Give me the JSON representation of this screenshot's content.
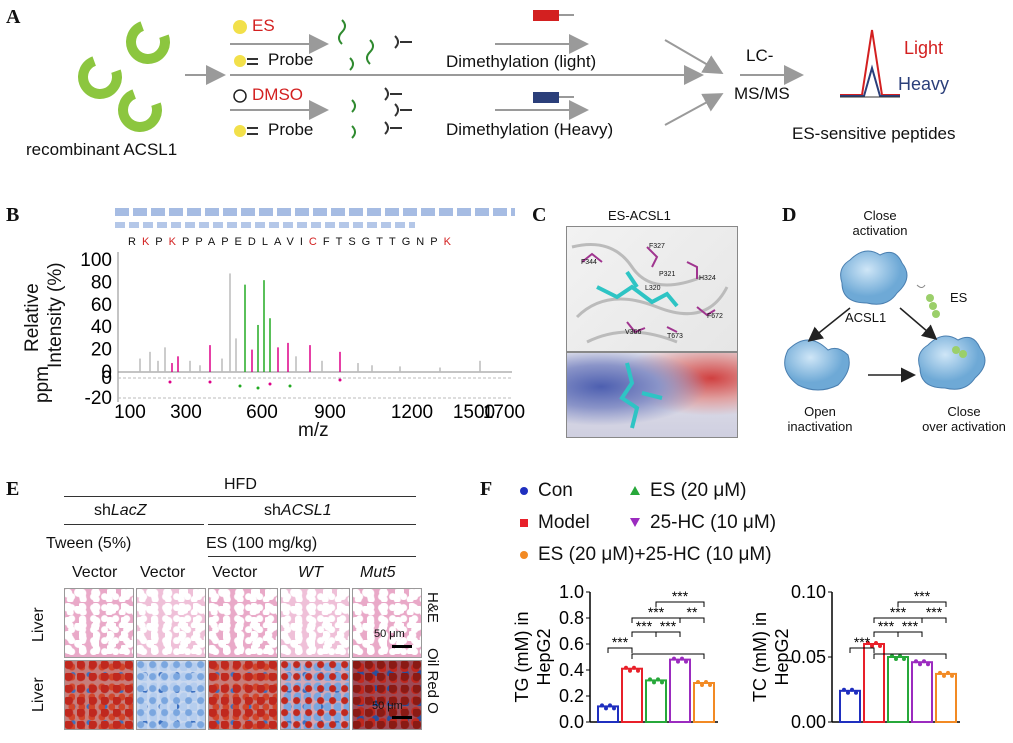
{
  "panel_labels": {
    "a": "A",
    "b": "B",
    "c": "C",
    "d": "D",
    "e": "E",
    "f": "F"
  },
  "panel_a": {
    "recombinant": "recombinant ACSL1",
    "es": "ES",
    "probe": "Probe",
    "dmso": "DMSO",
    "probe2": "Probe",
    "dim_light": "Dimethylation (light)",
    "dim_heavy": "Dimethylation (Heavy)",
    "lc_line1": "LC-",
    "lc_line2": "MS/MS",
    "light": "Light",
    "heavy": "Heavy",
    "es_sensitive": "ES-sensitive peptides",
    "colors": {
      "green": "#8cc63f",
      "red": "#d32020",
      "navy": "#2b3f7a",
      "yellow": "#f2e04a",
      "arrow": "#9a9a9a"
    }
  },
  "panel_b": {
    "peptide": [
      "R",
      "K",
      "P",
      "K",
      "P",
      "P",
      "A",
      "P",
      "E",
      "D",
      "L",
      "A",
      "V",
      "I",
      "C",
      "F",
      "T",
      "S",
      "G",
      "T",
      "T",
      "G",
      "N",
      "P",
      "K"
    ],
    "peptide_red_idx": [
      1,
      3,
      14,
      24
    ],
    "ylabel1": "Relative",
    "ylabel2": "Intensity (%)",
    "ppm": "ppm",
    "xlabel": "m/z",
    "yticks": [
      "100",
      "80",
      "60",
      "40",
      "20",
      "0"
    ],
    "ppm_ticks": [
      "0",
      "-20"
    ],
    "xticks": [
      "100",
      "300",
      "600",
      "900",
      "1200",
      "1500",
      "1700"
    ]
  },
  "panel_c": {
    "title": "ES-ACSL1",
    "residues": [
      "F344",
      "F327",
      "P321",
      "H324",
      "L320",
      "F672",
      "V366",
      "T673"
    ]
  },
  "panel_d": {
    "close_act1": "Close",
    "close_act2": "activation",
    "es": "ES",
    "acsl1": "ACSL1",
    "open1": "Open",
    "open2": "inactivation",
    "close_over1": "Close",
    "close_over2": "over activation"
  },
  "panel_e": {
    "hfd": "HFD",
    "shlacz_prefix": "sh",
    "shlacz_italic": "LacZ",
    "shacsl_prefix": "sh",
    "shacsl_italic": "ACSL1",
    "tween": "Tween (5%)",
    "es_dose": "ES (100 mg/kg)",
    "cols": [
      "Vector",
      "Vector",
      "Vector",
      "WT",
      "Mut5"
    ],
    "row_label": "Liver",
    "he": "H&E",
    "oil": "Oil Red O",
    "scale": "50 μm"
  },
  "panel_f": {
    "legend": [
      {
        "label": "Con",
        "color": "#1f2fbf",
        "marker": "circle"
      },
      {
        "label": "ES (20 μM)",
        "color": "#27a83a",
        "marker": "triangle"
      },
      {
        "label": "Model",
        "color": "#e8202a",
        "marker": "square"
      },
      {
        "label": "25-HC (10 μM)",
        "color": "#9b2bbf",
        "marker": "triangle-down"
      },
      {
        "label": "ES (20 μM)+25-HC (10 μM)",
        "color": "#f28a24",
        "marker": "circle"
      }
    ],
    "sig": "***",
    "sig2": "**"
  },
  "chart_data": [
    {
      "type": "bar",
      "ylabel": "TG (mM) in HepG2",
      "ylabel1": "TG (mM) in",
      "ylabel2": "HepG2",
      "ylim": [
        0,
        1.0
      ],
      "yticks": [
        "0.0",
        "0.2",
        "0.4",
        "0.6",
        "0.8",
        "1.0"
      ],
      "categories": [
        "Con",
        "Model",
        "ES (20 μM)",
        "25-HC (10 μM)",
        "ES (20 μM)+25-HC (10 μM)"
      ],
      "values": [
        0.12,
        0.41,
        0.32,
        0.48,
        0.3
      ],
      "colors": [
        "#1f2fbf",
        "#e8202a",
        "#27a83a",
        "#9b2bbf",
        "#f28a24"
      ]
    },
    {
      "type": "bar",
      "ylabel": "TC (mM) in HepG2",
      "ylabel1": "TC (mM) in",
      "ylabel2": "HepG2",
      "ylim": [
        0,
        0.1
      ],
      "yticks": [
        "0.00",
        "0.05",
        "0.10"
      ],
      "categories": [
        "Con",
        "Model",
        "ES (20 μM)",
        "25-HC (10 μM)",
        "ES (20 μM)+25-HC (10 μM)"
      ],
      "values": [
        0.024,
        0.06,
        0.05,
        0.046,
        0.037
      ],
      "colors": [
        "#1f2fbf",
        "#e8202a",
        "#27a83a",
        "#9b2bbf",
        "#f28a24"
      ]
    }
  ]
}
